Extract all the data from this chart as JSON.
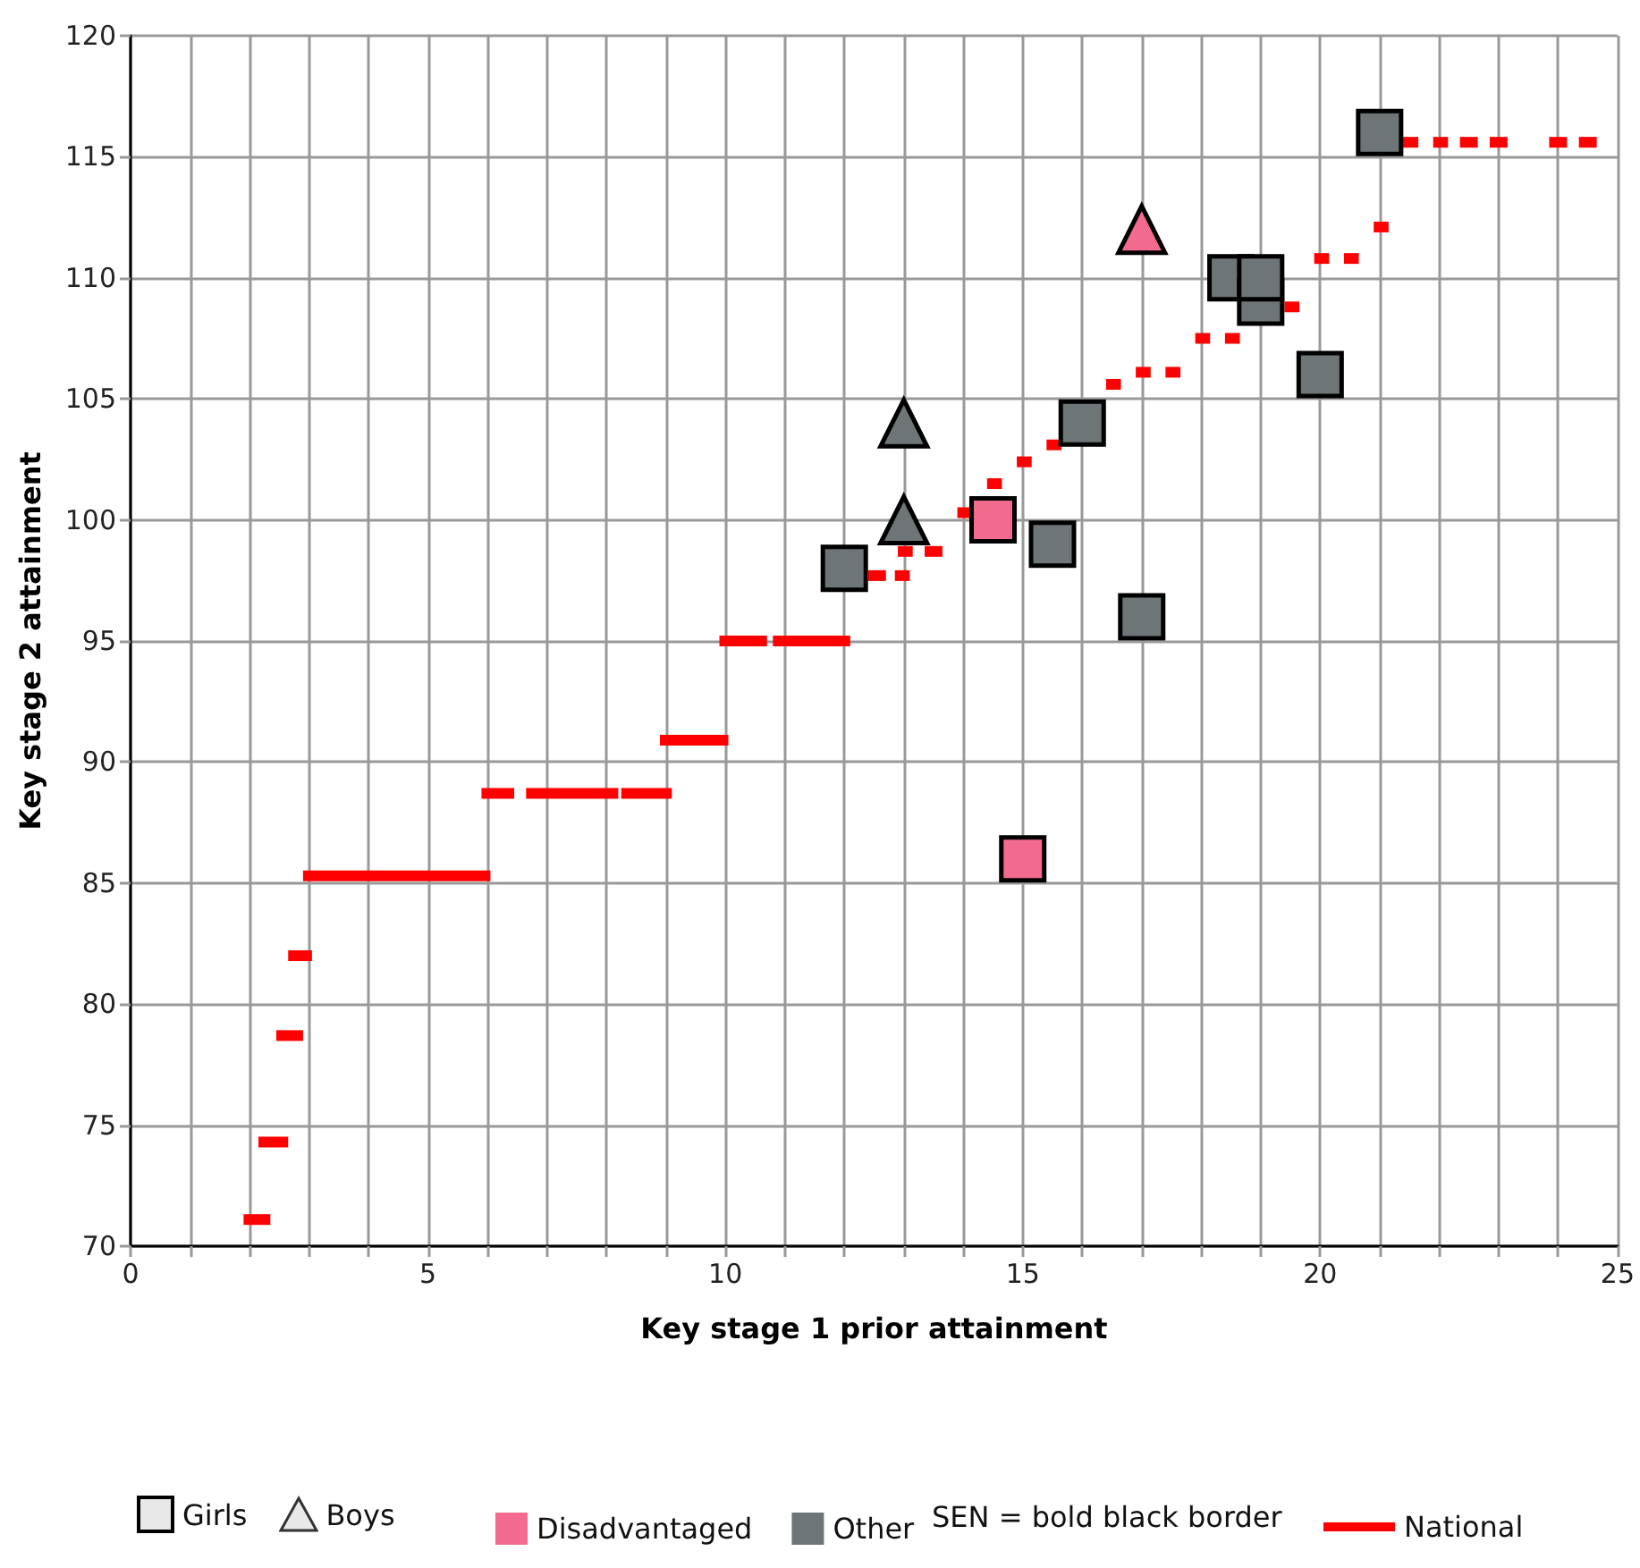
{
  "chart_data": {
    "type": "scatter",
    "xlabel": "Key stage 1 prior attainment",
    "ylabel": "Key stage 2 attainment",
    "xlim": [
      0,
      25
    ],
    "xticks": [
      0,
      {
        "value": 1,
        "label": null
      },
      {
        "value": 2,
        "label": null
      },
      {
        "value": 3,
        "label": null
      },
      {
        "value": 4,
        "label": null
      },
      5,
      {
        "value": 6,
        "label": null
      },
      {
        "value": 7,
        "label": null
      },
      {
        "value": 8,
        "label": null
      },
      {
        "value": 9,
        "label": null
      },
      10,
      {
        "value": 11,
        "label": null
      },
      {
        "value": 12,
        "label": null
      },
      {
        "value": 13,
        "label": null
      },
      {
        "value": 14,
        "label": null
      },
      15,
      {
        "value": 16,
        "label": null
      },
      {
        "value": 17,
        "label": null
      },
      {
        "value": 18,
        "label": null
      },
      {
        "value": 19,
        "label": null
      },
      20,
      {
        "value": 21,
        "label": null
      },
      {
        "value": 22,
        "label": null
      },
      {
        "value": 23,
        "label": null
      },
      {
        "value": 24,
        "label": null
      },
      25
    ],
    "ylim": [
      70,
      120
    ],
    "yticks": [
      70,
      75,
      80,
      85,
      90,
      95,
      100,
      105,
      110,
      115,
      120
    ],
    "grid": true,
    "legend": "bottom",
    "annotations": [
      "Girls",
      "Boys",
      "SEN = bold black border"
    ],
    "series": [
      {
        "name": "Disadvantaged",
        "marker": "square",
        "color": "#f26b8f",
        "x": [
          14.5,
          15
        ],
        "values": [
          100,
          86
        ]
      },
      {
        "name": "Other",
        "marker": "square",
        "color": "#6e7577",
        "x": [
          12,
          15.5,
          16,
          17,
          18.5,
          19,
          19,
          20,
          21
        ],
        "values": [
          98,
          99,
          104,
          96,
          110,
          109,
          110,
          106,
          116
        ]
      },
      {
        "marker": "triangle",
        "color": "#f26b8f",
        "x": [
          17
        ],
        "values": [
          112
        ]
      },
      {
        "marker": "triangle",
        "color": "#6e7577",
        "x": [
          13,
          13
        ],
        "values": [
          100,
          104
        ]
      },
      {
        "name": "National",
        "type": "line",
        "color": "#ff0000",
        "marker": "none",
        "x": [
          1.9,
          2.35,
          null,
          2.15,
          2.65,
          null,
          2.45,
          2.9,
          null,
          2.65,
          3.05,
          null,
          2.9,
          6.05,
          null,
          5.9,
          6.45,
          null,
          6.65,
          8.2,
          null,
          8.25,
          9.1,
          null,
          8.9,
          10.05,
          null,
          9.9,
          10.7,
          null,
          10.8,
          12.1,
          null,
          12.4,
          12.7,
          null,
          12.85,
          13.1,
          null,
          12.9,
          13.15,
          null,
          13.35,
          13.65,
          null,
          13.9,
          14.2,
          null,
          14.4,
          14.65,
          null,
          14.9,
          15.15,
          null,
          15.4,
          15.65,
          null,
          16.4,
          16.65,
          null,
          16.9,
          17.15,
          null,
          17.4,
          17.65,
          null,
          17.9,
          18.15,
          null,
          18.4,
          18.65,
          null,
          19.4,
          19.65,
          null,
          19.9,
          20.15,
          null,
          20.4,
          20.65,
          null,
          20.9,
          21.15,
          null,
          21.35,
          21.65,
          null,
          21.9,
          22.15,
          null,
          22.35,
          22.65,
          null,
          22.85,
          23.15,
          null,
          23.85,
          24.15,
          null,
          24.35,
          24.65
        ],
        "values": [
          71.1,
          71.1,
          null,
          74.3,
          74.3,
          null,
          78.7,
          78.7,
          null,
          82.0,
          82.0,
          null,
          85.3,
          85.3,
          null,
          88.7,
          88.7,
          null,
          88.7,
          88.7,
          null,
          88.7,
          88.7,
          null,
          90.9,
          90.9,
          null,
          95.0,
          95.0,
          null,
          95.0,
          95.0,
          null,
          97.7,
          97.7,
          null,
          97.7,
          97.7,
          null,
          98.7,
          98.7,
          null,
          98.7,
          98.7,
          null,
          100.3,
          100.3,
          null,
          101.5,
          101.5,
          null,
          102.4,
          102.4,
          null,
          103.1,
          103.1,
          null,
          105.6,
          105.6,
          null,
          106.1,
          106.1,
          null,
          106.1,
          106.1,
          null,
          107.5,
          107.5,
          null,
          107.5,
          107.5,
          null,
          108.8,
          108.8,
          null,
          110.8,
          110.8,
          null,
          110.8,
          110.8,
          null,
          112.1,
          112.1,
          null,
          115.6,
          115.6,
          null,
          115.6,
          115.6,
          null,
          115.6,
          115.6,
          null,
          115.6,
          115.6,
          null,
          115.6,
          115.6,
          null,
          115.6,
          115.6
        ]
      }
    ]
  }
}
